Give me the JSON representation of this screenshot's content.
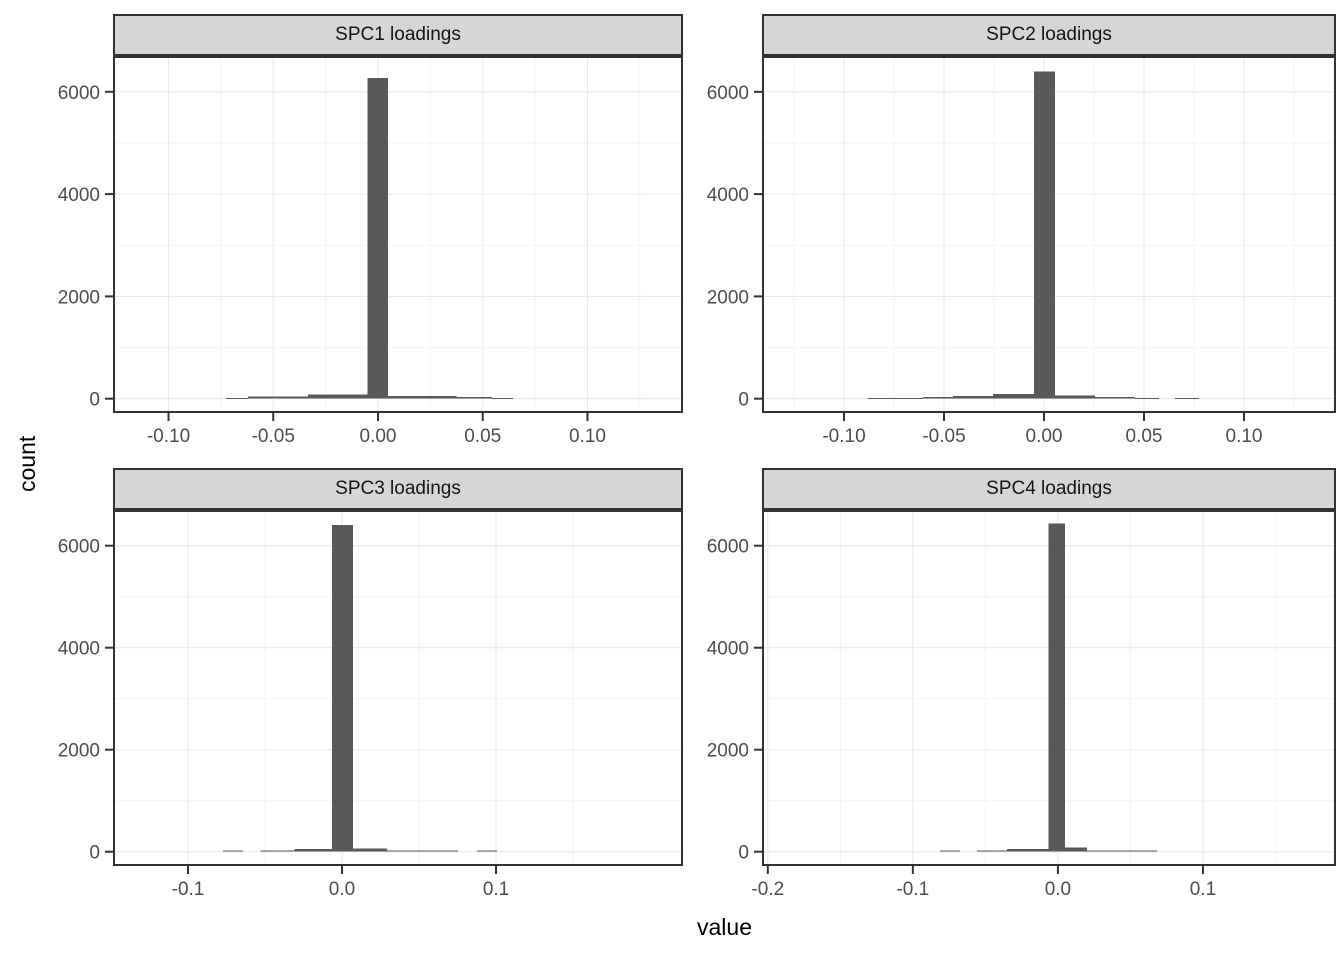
{
  "chart_data": {
    "type": "bar",
    "subtype": "faceted-histograms",
    "title": "",
    "xlabel": "value",
    "ylabel": "count",
    "grid": "on",
    "legend": "none",
    "y_ticks": [
      0,
      2000,
      4000,
      6000
    ],
    "y_minor": [
      1000,
      3000,
      5000
    ],
    "y_range": [
      -280,
      6700
    ],
    "facets": [
      {
        "title": "SPC1 loadings",
        "x_range": [
          -0.1265,
          0.1456
        ],
        "x_ticks": [
          {
            "v": -0.1,
            "label": "-0.10"
          },
          {
            "v": -0.05,
            "label": "-0.05"
          },
          {
            "v": 0.0,
            "label": "0.00"
          },
          {
            "v": 0.05,
            "label": "0.05"
          },
          {
            "v": 0.1,
            "label": "0.10"
          }
        ],
        "x_minor": [
          -0.125,
          -0.075,
          -0.025,
          0.025,
          0.075,
          0.125
        ],
        "peak_count": 6270,
        "bars": [
          [
            -0.0725,
            -0.062,
            18
          ],
          [
            -0.062,
            -0.0335,
            40
          ],
          [
            -0.0335,
            -0.005,
            78
          ],
          [
            -0.005,
            0.0048,
            6270
          ],
          [
            0.0048,
            0.0375,
            55
          ],
          [
            0.0375,
            0.0545,
            28
          ],
          [
            0.0545,
            0.0645,
            15
          ]
        ]
      },
      {
        "title": "SPC2 loadings",
        "x_range": [
          -0.141,
          0.146
        ],
        "x_ticks": [
          {
            "v": -0.1,
            "label": "-0.10"
          },
          {
            "v": -0.05,
            "label": "-0.05"
          },
          {
            "v": 0.0,
            "label": "0.00"
          },
          {
            "v": 0.05,
            "label": "0.05"
          },
          {
            "v": 0.1,
            "label": "0.10"
          }
        ],
        "x_minor": [
          -0.125,
          -0.075,
          -0.025,
          0.025,
          0.075,
          0.125
        ],
        "peak_count": 6400,
        "bars": [
          [
            -0.088,
            -0.0605,
            18
          ],
          [
            -0.0605,
            -0.0455,
            35
          ],
          [
            -0.0455,
            -0.0255,
            55
          ],
          [
            -0.0255,
            -0.005,
            88
          ],
          [
            -0.005,
            0.0055,
            6400
          ],
          [
            0.0055,
            0.0255,
            62
          ],
          [
            0.0255,
            0.0455,
            28
          ],
          [
            0.0455,
            0.0575,
            16
          ],
          [
            0.0655,
            0.0775,
            16
          ]
        ]
      },
      {
        "title": "SPC3 loadings",
        "x_range": [
          -0.1487,
          0.2214
        ],
        "x_ticks": [
          {
            "v": -0.1,
            "label": "-0.1"
          },
          {
            "v": 0.0,
            "label": "0.0"
          },
          {
            "v": 0.1,
            "label": "0.1"
          }
        ],
        "x_minor": [
          -0.05,
          0.05,
          0.15
        ],
        "peak_count": 6410,
        "bars": [
          [
            -0.0773,
            -0.0643,
            20
          ],
          [
            -0.053,
            -0.031,
            25
          ],
          [
            -0.031,
            -0.0065,
            55
          ],
          [
            -0.0065,
            0.0071,
            6410
          ],
          [
            0.0071,
            0.0292,
            60
          ],
          [
            0.0292,
            0.0752,
            25
          ],
          [
            0.0877,
            0.1006,
            20
          ]
        ]
      },
      {
        "title": "SPC4 loadings",
        "x_range": [
          -0.204,
          0.1917
        ],
        "x_ticks": [
          {
            "v": -0.2,
            "label": "-0.2"
          },
          {
            "v": -0.1,
            "label": "-0.1"
          },
          {
            "v": 0.0,
            "label": "0.0"
          },
          {
            "v": 0.1,
            "label": "0.1"
          }
        ],
        "x_minor": [
          -0.15,
          -0.05,
          0.05,
          0.15
        ],
        "peak_count": 6440,
        "bars": [
          [
            -0.0814,
            -0.0676,
            20
          ],
          [
            -0.0559,
            -0.0352,
            25
          ],
          [
            -0.0352,
            -0.0066,
            58
          ],
          [
            -0.0066,
            0.0048,
            6440
          ],
          [
            0.0048,
            0.02,
            78
          ],
          [
            0.02,
            0.0683,
            28
          ]
        ]
      }
    ],
    "colors": {
      "bar": "#595959",
      "panel_border": "#333333",
      "strip_bg": "#d6d6d6",
      "strip_text": "#141414",
      "grid_major": "#e7e7e7",
      "grid_minor": "#f3f3f3",
      "tick_mark": "#333333",
      "tick_label": "#4d4d4d",
      "axis_title": "#000000",
      "background": "#ffffff"
    }
  }
}
